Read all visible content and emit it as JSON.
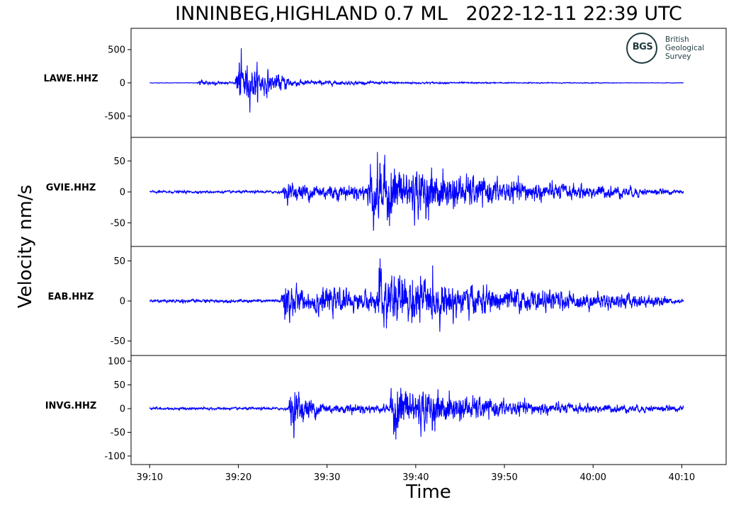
{
  "chart_data": {
    "type": "line",
    "title": "INNINBEG,HIGHLAND 0.7 ML   2022-12-11 22:39 UTC",
    "xlabel": "Time",
    "ylabel": "Velocity nm/s",
    "x_range_seconds": [
      2347.9,
      2415.0
    ],
    "x_ticks": [
      {
        "value": 2350,
        "label": "39:10"
      },
      {
        "value": 2360,
        "label": "39:20"
      },
      {
        "value": 2370,
        "label": "39:30"
      },
      {
        "value": 2380,
        "label": "39:40"
      },
      {
        "value": 2390,
        "label": "39:50"
      },
      {
        "value": 2400,
        "label": "40:00"
      },
      {
        "value": 2410,
        "label": "40:10"
      }
    ],
    "line_color": "#0000ff",
    "grid": false,
    "panels": [
      {
        "station": "LAWE.HHZ",
        "ylim": [
          -820,
          820
        ],
        "yticks": [
          {
            "value": 500,
            "label": "500"
          },
          {
            "value": 0,
            "label": "0"
          },
          {
            "value": -500,
            "label": "-500"
          }
        ],
        "noise": 6,
        "arrivals": [
          {
            "t": 2355.3,
            "amp": 90,
            "decay": 0.45,
            "dur": 5
          },
          {
            "t": 2359.6,
            "amp": 720,
            "decay": 0.35,
            "dur": 6
          },
          {
            "t": 2361.5,
            "amp": 80,
            "decay": 0.08,
            "dur": 40
          }
        ],
        "trace_start": 2350.0,
        "trace_end": 2410.2
      },
      {
        "station": "GVIE.HHZ",
        "ylim": [
          -88,
          88
        ],
        "yticks": [
          {
            "value": 50,
            "label": "50"
          },
          {
            "value": 0,
            "label": "0"
          },
          {
            "value": -50,
            "label": "-50"
          }
        ],
        "noise": 3,
        "arrivals": [
          {
            "t": 2364.9,
            "amp": 20,
            "decay": 0.03,
            "dur": 40
          },
          {
            "t": 2374.5,
            "amp": 70,
            "decay": 0.09,
            "dur": 34
          }
        ],
        "trace_start": 2350.0,
        "trace_end": 2410.2
      },
      {
        "station": "EAB.HHZ",
        "ylim": [
          -68,
          68
        ],
        "yticks": [
          {
            "value": 50,
            "label": "50"
          },
          {
            "value": 0,
            "label": "0"
          },
          {
            "value": -50,
            "label": "-50"
          }
        ],
        "noise": 3,
        "arrivals": [
          {
            "t": 2364.8,
            "amp": 60,
            "decay": 0.5,
            "dur": 6
          },
          {
            "t": 2368.0,
            "amp": 18,
            "decay": 0.02,
            "dur": 40
          },
          {
            "t": 2375.5,
            "amp": 45,
            "decay": 0.11,
            "dur": 30
          }
        ],
        "trace_start": 2350.0,
        "trace_end": 2410.2
      },
      {
        "station": "INVG.HHZ",
        "ylim": [
          -118,
          112
        ],
        "yticks": [
          {
            "value": 100,
            "label": "100"
          },
          {
            "value": 50,
            "label": "50"
          },
          {
            "value": 0,
            "label": "0"
          },
          {
            "value": -50,
            "label": "-50"
          },
          {
            "value": -100,
            "label": "-100"
          }
        ],
        "noise": 4,
        "arrivals": [
          {
            "t": 2365.6,
            "amp": 75,
            "decay": 0.35,
            "dur": 7
          },
          {
            "t": 2372.0,
            "amp": 10,
            "decay": 0.02,
            "dur": 40
          },
          {
            "t": 2377.0,
            "amp": 80,
            "decay": 0.12,
            "dur": 30
          }
        ],
        "trace_start": 2350.0,
        "trace_end": 2410.2
      }
    ]
  },
  "logo": {
    "abbrev": "BGS",
    "line1": "British",
    "line2": "Geological",
    "line3": "Survey",
    "color": "#1f3a3f"
  }
}
